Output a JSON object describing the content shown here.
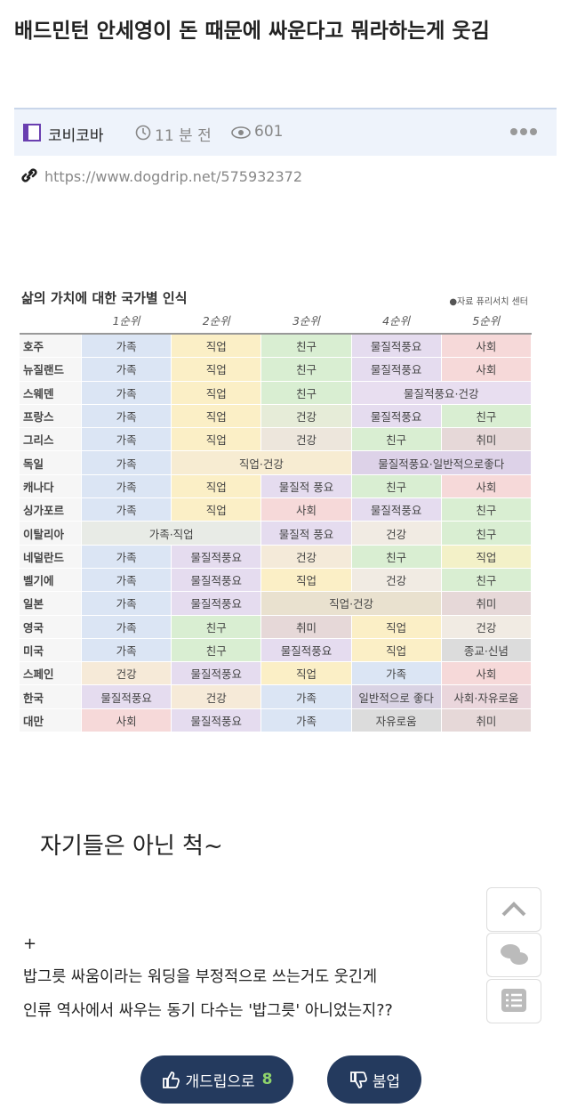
{
  "post": {
    "title": "배드민턴 안세영이 돈 때문에 싸운다고 뭐라하는게 웃김",
    "author": "코비코바",
    "time": "11 분 전",
    "views": 601,
    "url": "https://www.dogdrip.net/575932372"
  },
  "table": {
    "title": "삶의 가치에 대한 국가별 인식",
    "source": "●자료 퓨리서치 센터",
    "headers": [
      "1순위",
      "2순위",
      "3순위",
      "4순위",
      "5순위"
    ],
    "rows": [
      {
        "country": "호주",
        "cells": [
          {
            "t": "가족",
            "c": "#dbe5f4"
          },
          {
            "t": "직업",
            "c": "#fbefc6"
          },
          {
            "t": "친구",
            "c": "#d9eed2"
          },
          {
            "t": "물질적풍요",
            "c": "#e5dcef"
          },
          {
            "t": "사회",
            "c": "#f6d9d9"
          }
        ]
      },
      {
        "country": "뉴질랜드",
        "cells": [
          {
            "t": "가족",
            "c": "#dbe5f4"
          },
          {
            "t": "직업",
            "c": "#fbefc6"
          },
          {
            "t": "친구",
            "c": "#d9eed2"
          },
          {
            "t": "물질적풍요",
            "c": "#e5dcef"
          },
          {
            "t": "사회",
            "c": "#f6d9d9"
          }
        ]
      },
      {
        "country": "스웨덴",
        "cells": [
          {
            "t": "가족",
            "c": "#dbe5f4"
          },
          {
            "t": "직업",
            "c": "#fbefc6"
          },
          {
            "t": "친구",
            "c": "#d9eed2"
          },
          {
            "t": "물질적풍요·건강",
            "c": "#e8def0",
            "s": 2
          }
        ]
      },
      {
        "country": "프랑스",
        "cells": [
          {
            "t": "가족",
            "c": "#dbe5f4"
          },
          {
            "t": "직업",
            "c": "#fbefc6"
          },
          {
            "t": "건강",
            "c": "#e6ecd8"
          },
          {
            "t": "물질적풍요",
            "c": "#e5dcef"
          },
          {
            "t": "친구",
            "c": "#d9eed2"
          }
        ]
      },
      {
        "country": "그리스",
        "cells": [
          {
            "t": "가족",
            "c": "#dbe5f4"
          },
          {
            "t": "직업",
            "c": "#fbefc6"
          },
          {
            "t": "건강",
            "c": "#ede6dc"
          },
          {
            "t": "친구",
            "c": "#d9eed2"
          },
          {
            "t": "취미",
            "c": "#e6d8d8"
          }
        ]
      },
      {
        "country": "독일",
        "cells": [
          {
            "t": "가족",
            "c": "#dbe5f4"
          },
          {
            "t": "직업·건강",
            "c": "#f7ecd2",
            "s": 2
          },
          {
            "t": "물질적풍요·일반적으로좋다",
            "c": "#ddd2e8",
            "s": 2
          }
        ]
      },
      {
        "country": "캐나다",
        "cells": [
          {
            "t": "가족",
            "c": "#dbe5f4"
          },
          {
            "t": "직업",
            "c": "#fbefc6"
          },
          {
            "t": "물질적 풍요",
            "c": "#e5dcef"
          },
          {
            "t": "친구",
            "c": "#d9eed2"
          },
          {
            "t": "사회",
            "c": "#f6d9d9"
          }
        ]
      },
      {
        "country": "싱가포르",
        "cells": [
          {
            "t": "가족",
            "c": "#dbe5f4"
          },
          {
            "t": "직업",
            "c": "#fbefc6"
          },
          {
            "t": "사회",
            "c": "#f6d9d9"
          },
          {
            "t": "물질적풍요",
            "c": "#e5dcef"
          },
          {
            "t": "친구",
            "c": "#d9eed2"
          }
        ]
      },
      {
        "country": "이탈리아",
        "cells": [
          {
            "t": "가족·직업",
            "c": "#e8ebe6",
            "s": 2
          },
          {
            "t": "물질적 풍요",
            "c": "#e5dcef"
          },
          {
            "t": "건강",
            "c": "#f1ebe3"
          },
          {
            "t": "친구",
            "c": "#d9eed2"
          }
        ]
      },
      {
        "country": "네덜란드",
        "cells": [
          {
            "t": "가족",
            "c": "#dbe5f4"
          },
          {
            "t": "물질적풍요",
            "c": "#e5dcef"
          },
          {
            "t": "건강",
            "c": "#f4ead9"
          },
          {
            "t": "친구",
            "c": "#d9eed2"
          },
          {
            "t": "직업",
            "c": "#f3f1c8"
          }
        ]
      },
      {
        "country": "벨기에",
        "cells": [
          {
            "t": "가족",
            "c": "#dbe5f4"
          },
          {
            "t": "물질적풍요",
            "c": "#e5dcef"
          },
          {
            "t": "직업",
            "c": "#fbefc6"
          },
          {
            "t": "건강",
            "c": "#f1ebe3"
          },
          {
            "t": "친구",
            "c": "#d9eed2"
          }
        ]
      },
      {
        "country": "일본",
        "cells": [
          {
            "t": "가족",
            "c": "#dbe5f4"
          },
          {
            "t": "물질적풍요",
            "c": "#e5dcef"
          },
          {
            "t": "직업·건강",
            "c": "#e9e1cf",
            "s": 2
          },
          {
            "t": "취미",
            "c": "#e6d8d8"
          }
        ]
      },
      {
        "country": "영국",
        "cells": [
          {
            "t": "가족",
            "c": "#dbe5f4"
          },
          {
            "t": "친구",
            "c": "#d9eed2"
          },
          {
            "t": "취미",
            "c": "#e6d8d8"
          },
          {
            "t": "직업",
            "c": "#fbefc6"
          },
          {
            "t": "건강",
            "c": "#f1ebe3"
          }
        ]
      },
      {
        "country": "미국",
        "cells": [
          {
            "t": "가족",
            "c": "#dbe5f4"
          },
          {
            "t": "친구",
            "c": "#d9eed2"
          },
          {
            "t": "물질적풍요",
            "c": "#e5dcef"
          },
          {
            "t": "직업",
            "c": "#fbefc6"
          },
          {
            "t": "종교·신념",
            "c": "#dcdcdc"
          }
        ]
      },
      {
        "country": "스페인",
        "cells": [
          {
            "t": "건강",
            "c": "#f6ead8"
          },
          {
            "t": "물질적풍요",
            "c": "#e5dcef"
          },
          {
            "t": "직업",
            "c": "#fbefc6"
          },
          {
            "t": "가족",
            "c": "#dbe5f4"
          },
          {
            "t": "사회",
            "c": "#f6d9d9"
          }
        ]
      },
      {
        "country": "한국",
        "cells": [
          {
            "t": "물질적풍요",
            "c": "#e5dcef"
          },
          {
            "t": "건강",
            "c": "#f6ead8"
          },
          {
            "t": "가족",
            "c": "#dbe5f4"
          },
          {
            "t": "일반적으로 좋다",
            "c": "#d9d3e4"
          },
          {
            "t": "사회·자유로움",
            "c": "#ead6dc"
          }
        ]
      },
      {
        "country": "대만",
        "cells": [
          {
            "t": "사회",
            "c": "#f6d9d9"
          },
          {
            "t": "물질적풍요",
            "c": "#e5dcef"
          },
          {
            "t": "가족",
            "c": "#dbe5f4"
          },
          {
            "t": "자유로움",
            "c": "#dcdcdc"
          },
          {
            "t": "취미",
            "c": "#e6d8d8"
          }
        ]
      }
    ]
  },
  "body": {
    "heading": "자기들은 아닌 척~",
    "plus": "+",
    "lines": [
      "밥그릇 싸움이라는 워딩을 부정적으로 쓰는거도 웃긴게",
      "인류 역사에서 싸우는 동기 다수는 '밥그릇' 아니었는지??"
    ]
  },
  "buttons": {
    "up_label": "개드립으로",
    "up_count": 8,
    "down_label": "붐업"
  }
}
